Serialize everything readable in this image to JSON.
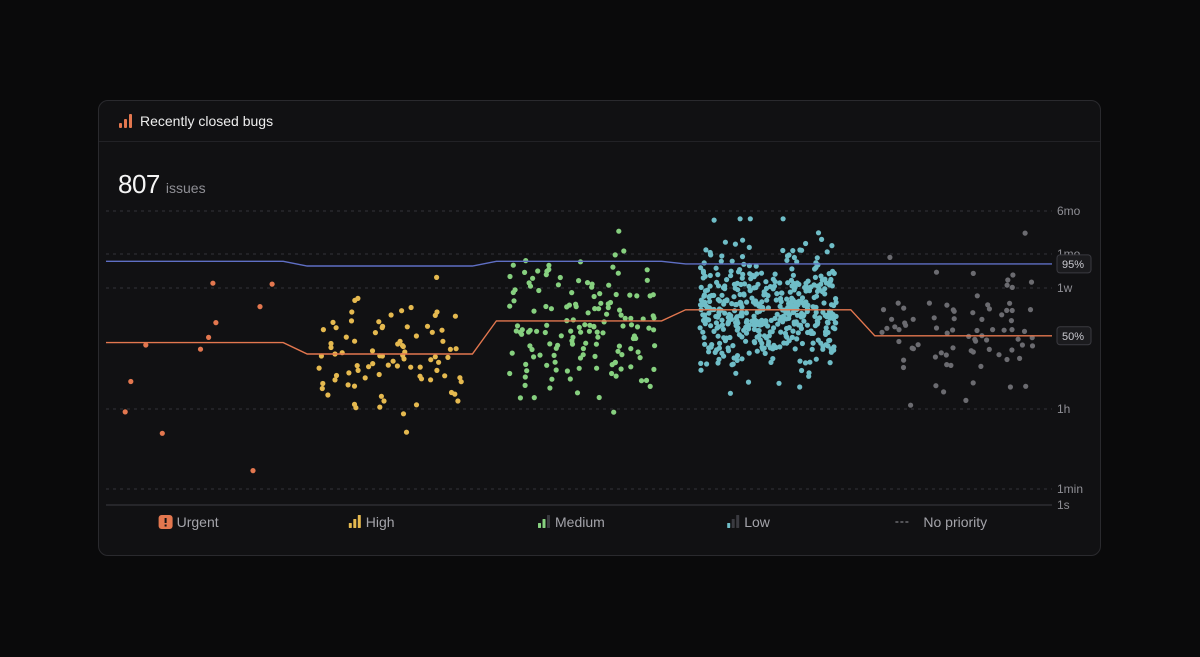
{
  "card": {
    "title": "Recently closed bugs",
    "title_icon": "bar-chart-icon",
    "total_count": "807",
    "total_unit": "issues"
  },
  "chart_data": {
    "type": "scatter",
    "title": "Recently closed bugs",
    "y_scale": "log",
    "y_ticks": [
      {
        "label": "6mo",
        "seconds": 15552000
      },
      {
        "label": "1mo",
        "seconds": 2592000
      },
      {
        "label": "1w",
        "seconds": 604800
      },
      {
        "label": "1h",
        "seconds": 3600
      },
      {
        "label": "1min",
        "seconds": 60
      },
      {
        "label": "1s",
        "seconds": 1
      }
    ],
    "categories": [
      {
        "label": "Urgent",
        "icon": "urgent-priority-icon",
        "color": "#e3774f",
        "count": 11
      },
      {
        "label": "High",
        "icon": "high-priority-icon",
        "color": "#e5b94f",
        "count": 85
      },
      {
        "label": "Medium",
        "icon": "medium-priority-icon",
        "color": "#86d07f",
        "count": 150
      },
      {
        "label": "Low",
        "icon": "low-priority-icon",
        "color": "#6fbdc7",
        "count": 480
      },
      {
        "label": "No priority",
        "icon": "no-priority-icon",
        "color": "#6b6b70",
        "count": 81
      }
    ],
    "percentile_lines": [
      {
        "label": "95%",
        "color": "#5f6fc4",
        "values_seconds": [
          1900000,
          1550000,
          1900000,
          1700000,
          1700000
        ]
      },
      {
        "label": "50%",
        "color": "#e3774f",
        "values_seconds": [
          60000,
          37000,
          150000,
          240000,
          80000
        ]
      }
    ]
  }
}
